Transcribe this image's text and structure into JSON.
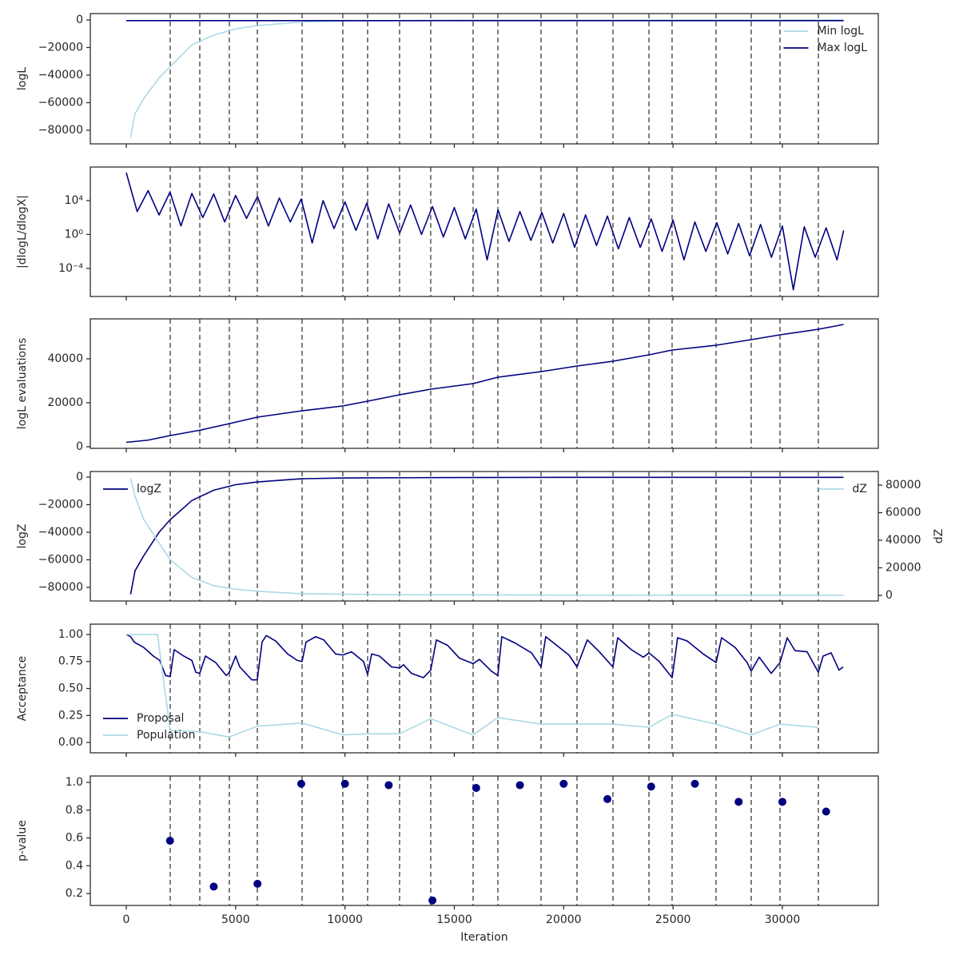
{
  "chart_data": [
    {
      "type": "line",
      "ylabel": "logL",
      "legend": "upper right",
      "show_xticklabels": false,
      "xlim": [
        -1644,
        34385
      ],
      "xticks": [
        0,
        5000,
        10000,
        15000,
        20000,
        25000,
        30000
      ],
      "ylim": [
        -89855,
        4638
      ],
      "yticks": [
        {
          "value": -80000,
          "label": "−80000"
        },
        {
          "value": -60000,
          "label": "−60000"
        },
        {
          "value": -40000,
          "label": "−40000"
        },
        {
          "value": -20000,
          "label": "−20000"
        },
        0
      ],
      "vlines": [
        2010,
        3362,
        4714,
        5993,
        8039,
        9902,
        11035,
        12497,
        13922,
        15859,
        16991,
        18965,
        20609,
        22253,
        23898,
        24957,
        26967,
        28575,
        29890,
        31644
      ],
      "series": [
        {
          "name": "Min logL",
          "color": "#add8e6",
          "x": [
            200,
            400,
            800,
            1500,
            2000,
            3000,
            4000,
            5000,
            6000,
            8000,
            10000,
            15000,
            20000,
            25000,
            30000,
            32800
          ],
          "values": [
            -85000,
            -68000,
            -57000,
            -42000,
            -34000,
            -18000,
            -11000,
            -6500,
            -4000,
            -1500,
            -700,
            -200,
            -100,
            -50,
            -20,
            -10
          ]
        },
        {
          "name": "Max logL",
          "color": "#000080",
          "x": [
            0,
            32800
          ],
          "values": [
            -500,
            -500
          ]
        }
      ]
    },
    {
      "type": "line",
      "ylabel": "|dlogL/dlogX|",
      "ylog": true,
      "show_xticklabels": false,
      "xlim": [
        -1644,
        34385
      ],
      "xticks": [
        0,
        5000,
        10000,
        15000,
        20000,
        25000,
        30000
      ],
      "ylim": [
        4.8e-08,
        91000000.0
      ],
      "yticks": [
        {
          "value": 0.0001,
          "label": "10⁻⁴"
        },
        {
          "value": 1,
          "label": "10⁰"
        },
        {
          "value": 10000,
          "label": "10⁴"
        }
      ],
      "vlines": [
        2010,
        3362,
        4714,
        5993,
        8039,
        9902,
        11035,
        12497,
        13922,
        15859,
        16991,
        18965,
        20609,
        22253,
        23898,
        24957,
        26967,
        28575,
        29890,
        31644
      ],
      "series": [
        {
          "color": "#000080",
          "x": [
            0,
            500,
            1000,
            1500,
            2000,
            2500,
            3000,
            3500,
            4000,
            4500,
            5000,
            5500,
            6000,
            6500,
            7000,
            7500,
            8000,
            8500,
            9000,
            9500,
            10000,
            10500,
            11000,
            11500,
            12000,
            12500,
            13000,
            13500,
            14000,
            14500,
            15000,
            15500,
            16000,
            16500,
            17000,
            17500,
            18000,
            18500,
            19000,
            19500,
            20000,
            20500,
            21000,
            21500,
            22000,
            22500,
            23000,
            23500,
            24000,
            24500,
            25000,
            25500,
            26000,
            26500,
            27000,
            27500,
            28000,
            28500,
            29000,
            29500,
            30000,
            30500,
            31000,
            31500,
            32000,
            32500,
            32800
          ],
          "values": [
            20000000.0,
            500,
            150000,
            200,
            100000,
            10,
            70000,
            100,
            60000,
            30,
            40000,
            80,
            30000,
            10,
            20000,
            30,
            15000,
            0.1,
            10000,
            5,
            7000,
            3,
            5000,
            0.3,
            4000,
            1.5,
            3000,
            1,
            2000,
            0.5,
            1500,
            0.3,
            1000,
            0.001,
            800,
            0.15,
            500,
            0.2,
            400,
            0.1,
            300,
            0.03,
            200,
            0.05,
            150,
            0.02,
            100,
            0.03,
            70,
            0.01,
            50,
            0.001,
            30,
            0.01,
            25,
            0.005,
            20,
            0.003,
            15,
            0.002,
            10,
            3e-07,
            8,
            0.002,
            6,
            0.001,
            3
          ]
        }
      ]
    },
    {
      "type": "line",
      "ylabel": "logL evaluations",
      "show_xticklabels": false,
      "xlim": [
        -1644,
        34385
      ],
      "xticks": [
        0,
        5000,
        10000,
        15000,
        20000,
        25000,
        30000
      ],
      "ylim": [
        -727,
        58182
      ],
      "yticks": [
        0,
        20000,
        40000
      ],
      "vlines": [
        2010,
        3362,
        4714,
        5993,
        8039,
        9902,
        11035,
        12497,
        13922,
        15859,
        16991,
        18965,
        20609,
        22253,
        23898,
        24957,
        26967,
        28575,
        29890,
        31644
      ],
      "series": [
        {
          "color": "#000080",
          "x": [
            0,
            1000,
            2010,
            3360,
            4710,
            5990,
            8040,
            9900,
            11035,
            12500,
            13920,
            15860,
            16990,
            18965,
            20610,
            22250,
            23900,
            24960,
            26970,
            28575,
            29890,
            31645,
            32800
          ],
          "values": [
            2000,
            3000,
            5100,
            7500,
            10500,
            13450,
            16360,
            18545,
            20727,
            23636,
            26180,
            28727,
            31636,
            34182,
            36727,
            38909,
            41818,
            44000,
            46182,
            48727,
            50909,
            53454,
            55636
          ]
        }
      ]
    },
    {
      "type": "line",
      "ylabel": "logZ",
      "y2label": "dZ",
      "legend": "upper left",
      "legend2": "upper right",
      "show_xticklabels": false,
      "xlim": [
        -1644,
        34385
      ],
      "xticks": [
        0,
        5000,
        10000,
        15000,
        20000,
        25000,
        30000
      ],
      "ylim": [
        -89855,
        4058
      ],
      "yticks": [
        {
          "value": -80000,
          "label": "−80000"
        },
        {
          "value": -60000,
          "label": "−60000"
        },
        {
          "value": -40000,
          "label": "−40000"
        },
        {
          "value": -20000,
          "label": "−20000"
        },
        0
      ],
      "y2lim": [
        -4058,
        89855
      ],
      "y2ticks": [
        0,
        20000,
        40000,
        60000,
        80000
      ],
      "vlines": [
        2010,
        3362,
        4714,
        5993,
        8039,
        9902,
        11035,
        12497,
        13922,
        15859,
        16991,
        18965,
        20609,
        22253,
        23898,
        24957,
        26967,
        28575,
        29890,
        31644
      ],
      "series": [
        {
          "name": "logZ",
          "color": "#000080",
          "x": [
            200,
            400,
            800,
            1500,
            2000,
            3000,
            4000,
            5000,
            6000,
            8000,
            10000,
            15000,
            20000,
            32800
          ],
          "values": [
            -85000,
            -68000,
            -57000,
            -40000,
            -31000,
            -17000,
            -9500,
            -5500,
            -3500,
            -1200,
            -600,
            -300,
            -200,
            -200
          ]
        },
        {
          "name": "dZ",
          "color": "#add8e6",
          "axis": "y2",
          "x": [
            200,
            400,
            800,
            1500,
            2000,
            3000,
            4000,
            5000,
            6000,
            8000,
            12000,
            20000,
            32800
          ],
          "values": [
            85000,
            72000,
            55000,
            38000,
            26000,
            13000,
            7000,
            4500,
            3000,
            1200,
            500,
            200,
            100
          ]
        }
      ]
    },
    {
      "type": "line",
      "ylabel": "Acceptance",
      "legend": "lower left",
      "show_xticklabels": false,
      "xlim": [
        -1644,
        34385
      ],
      "xticks": [
        0,
        5000,
        10000,
        15000,
        20000,
        25000,
        30000
      ],
      "ylim": [
        -0.096,
        1.096
      ],
      "yticks": [
        {
          "value": 0,
          "label": "0.00"
        },
        0.25,
        {
          "value": 0.5,
          "label": "0.50"
        },
        0.75,
        {
          "value": 1,
          "label": "1.00"
        }
      ],
      "vlines": [
        2010,
        3362,
        4714,
        5993,
        8039,
        9902,
        11035,
        12497,
        13922,
        15859,
        16991,
        18965,
        20609,
        22253,
        23898,
        24957,
        26967,
        28575,
        29890,
        31644
      ],
      "series": [
        {
          "name": "Proposal",
          "color": "#000080",
          "x": [
            0,
            200,
            365,
            800,
            1240,
            1530,
            1800,
            2010,
            2190,
            2630,
            3000,
            3180,
            3360,
            3620,
            4090,
            4570,
            4710,
            5000,
            5190,
            5740,
            5990,
            6210,
            6400,
            6830,
            7380,
            7820,
            8040,
            8220,
            8660,
            9030,
            9570,
            9900,
            10300,
            10850,
            11035,
            11220,
            11580,
            12130,
            12500,
            12680,
            13040,
            13590,
            13920,
            14180,
            14690,
            15240,
            15860,
            16150,
            16700,
            16990,
            17170,
            17790,
            18530,
            18965,
            19180,
            19800,
            20240,
            20610,
            21080,
            21630,
            22250,
            22470,
            23090,
            23640,
            23900,
            24370,
            24960,
            25210,
            25650,
            26380,
            26970,
            27220,
            27840,
            28390,
            28575,
            28940,
            29490,
            29890,
            30220,
            30580,
            31130,
            31645,
            31860,
            32230,
            32590,
            32780
          ],
          "values": [
            1.0,
            0.98,
            0.93,
            0.88,
            0.8,
            0.76,
            0.62,
            0.61,
            0.86,
            0.8,
            0.76,
            0.65,
            0.64,
            0.8,
            0.74,
            0.62,
            0.65,
            0.8,
            0.7,
            0.58,
            0.58,
            0.93,
            0.99,
            0.94,
            0.82,
            0.76,
            0.75,
            0.93,
            0.98,
            0.95,
            0.82,
            0.81,
            0.84,
            0.75,
            0.63,
            0.82,
            0.8,
            0.7,
            0.69,
            0.72,
            0.64,
            0.6,
            0.67,
            0.95,
            0.9,
            0.78,
            0.73,
            0.77,
            0.66,
            0.62,
            0.98,
            0.92,
            0.83,
            0.7,
            0.98,
            0.88,
            0.81,
            0.7,
            0.95,
            0.84,
            0.7,
            0.97,
            0.86,
            0.79,
            0.83,
            0.75,
            0.6,
            0.97,
            0.94,
            0.82,
            0.74,
            0.97,
            0.88,
            0.74,
            0.66,
            0.79,
            0.64,
            0.74,
            0.97,
            0.85,
            0.84,
            0.65,
            0.8,
            0.83,
            0.67,
            0.7
          ]
        },
        {
          "name": "Population",
          "color": "#add8e6",
          "x": [
            0,
            1430,
            2010,
            3360,
            4710,
            5990,
            8040,
            9900,
            11035,
            12500,
            13920,
            15860,
            16990,
            18965,
            20610,
            22250,
            23900,
            24960,
            26970,
            28575,
            29890,
            31645
          ],
          "values": [
            1.0,
            1.0,
            0.11,
            0.1,
            0.05,
            0.15,
            0.18,
            0.07,
            0.08,
            0.08,
            0.22,
            0.07,
            0.23,
            0.17,
            0.17,
            0.17,
            0.14,
            0.26,
            0.17,
            0.07,
            0.17,
            0.14
          ]
        }
      ]
    },
    {
      "type": "scatter",
      "ylabel": "p-value",
      "xlabel": "Iteration",
      "show_xticklabels": true,
      "xlim": [
        -1644,
        34385
      ],
      "xticks": [
        0,
        5000,
        10000,
        15000,
        20000,
        25000,
        30000
      ],
      "ylim": [
        0.114,
        1.046
      ],
      "yticks": [
        0.2,
        0.4,
        0.6,
        0.8,
        {
          "value": 1,
          "label": "1.0"
        }
      ],
      "vlines": [
        2010,
        3362,
        4714,
        5993,
        8039,
        9902,
        11035,
        12497,
        13922,
        15859,
        16991,
        18965,
        20609,
        22253,
        23898,
        24957,
        26967,
        28575,
        29890,
        31644
      ],
      "series": [
        {
          "color": "#000080",
          "x": [
            2000,
            4000,
            6000,
            8000,
            10000,
            12000,
            14000,
            16000,
            18000,
            20000,
            22000,
            24000,
            26000,
            28000,
            30000,
            32000
          ],
          "values": [
            0.58,
            0.25,
            0.27,
            0.99,
            0.99,
            0.98,
            0.15,
            0.96,
            0.98,
            0.99,
            0.88,
            0.97,
            0.99,
            0.86,
            0.86,
            0.79
          ]
        }
      ]
    }
  ]
}
